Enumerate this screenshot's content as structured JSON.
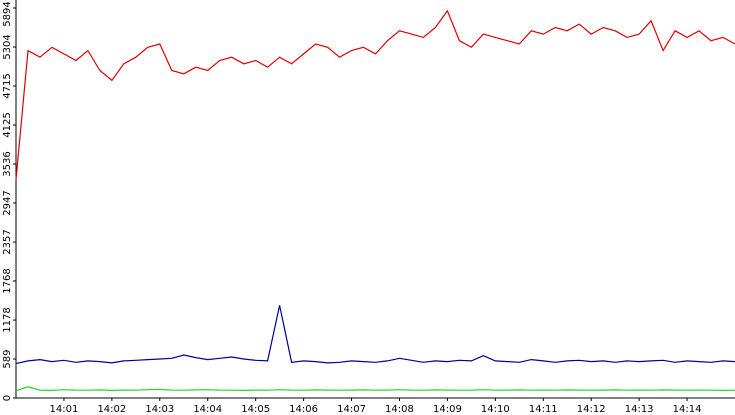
{
  "chart_data": {
    "type": "line",
    "x": [
      0,
      0.25,
      0.5,
      0.75,
      1,
      1.25,
      1.5,
      1.75,
      2,
      2.25,
      2.5,
      2.75,
      3,
      3.25,
      3.5,
      3.75,
      4,
      4.25,
      4.5,
      4.75,
      5,
      5.25,
      5.5,
      5.75,
      6,
      6.25,
      6.5,
      6.75,
      7,
      7.25,
      7.5,
      7.75,
      8,
      8.25,
      8.5,
      8.75,
      9,
      9.25,
      9.5,
      9.75,
      10,
      10.25,
      10.5,
      10.75,
      11,
      11.25,
      11.5,
      11.75,
      12,
      12.25,
      12.5,
      12.75,
      13,
      13.25,
      13.5,
      13.75,
      14,
      14.25,
      14.5,
      14.75,
      15
    ],
    "series": [
      {
        "color": "#e00000",
        "values": [
          3300,
          5250,
          5150,
          5300,
          5200,
          5100,
          5250,
          4950,
          4800,
          5050,
          5150,
          5300,
          5350,
          4950,
          4900,
          5000,
          4950,
          5100,
          5150,
          5050,
          5100,
          5000,
          5150,
          5050,
          5200,
          5350,
          5300,
          5150,
          5250,
          5300,
          5200,
          5400,
          5550,
          5500,
          5450,
          5600,
          5850,
          5400,
          5300,
          5500,
          5450,
          5400,
          5350,
          5550,
          5500,
          5600,
          5550,
          5650,
          5500,
          5600,
          5550,
          5450,
          5500,
          5700,
          5250,
          5550,
          5450,
          5550,
          5400,
          5450,
          5350
        ]
      },
      {
        "color": "#00009c",
        "values": [
          520,
          560,
          580,
          550,
          570,
          540,
          560,
          550,
          530,
          560,
          570,
          580,
          590,
          600,
          650,
          610,
          580,
          600,
          620,
          590,
          570,
          560,
          1400,
          540,
          560,
          550,
          530,
          540,
          560,
          550,
          540,
          560,
          600,
          570,
          540,
          560,
          550,
          570,
          560,
          640,
          560,
          550,
          540,
          580,
          560,
          540,
          560,
          570,
          550,
          560,
          540,
          560,
          550,
          560,
          570,
          540,
          560,
          550,
          540,
          560,
          550
        ]
      },
      {
        "color": "#30d030",
        "values": [
          110,
          170,
          120,
          115,
          125,
          120,
          118,
          122,
          115,
          120,
          118,
          125,
          130,
          120,
          118,
          122,
          125,
          120,
          118,
          115,
          120,
          118,
          125,
          120,
          118,
          122,
          120,
          118,
          120,
          122,
          118,
          120,
          125,
          120,
          118,
          122,
          120,
          118,
          120,
          125,
          118,
          120,
          122,
          118,
          120,
          118,
          122,
          120,
          118,
          120,
          122,
          118,
          120,
          118,
          122,
          120,
          118,
          120,
          118,
          115,
          118
        ]
      }
    ],
    "ylim": [
      0,
      5894
    ],
    "yticks": [
      0,
      589,
      1178,
      1768,
      2357,
      2947,
      3536,
      4125,
      4715,
      5304,
      5894
    ],
    "xlim": [
      0,
      15
    ],
    "xticks": [
      {
        "value": 1,
        "label": "14:01"
      },
      {
        "value": 2,
        "label": "14:02"
      },
      {
        "value": 3,
        "label": "14:03"
      },
      {
        "value": 4,
        "label": "14:04"
      },
      {
        "value": 5,
        "label": "14:05"
      },
      {
        "value": 6,
        "label": "14:06"
      },
      {
        "value": 7,
        "label": "14:07"
      },
      {
        "value": 8,
        "label": "14:08"
      },
      {
        "value": 9,
        "label": "14:09"
      },
      {
        "value": 10,
        "label": "14:10"
      },
      {
        "value": 11,
        "label": "14:11"
      },
      {
        "value": 12,
        "label": "14:12"
      },
      {
        "value": 13,
        "label": "14:13"
      },
      {
        "value": 14,
        "label": "14:14"
      }
    ]
  }
}
